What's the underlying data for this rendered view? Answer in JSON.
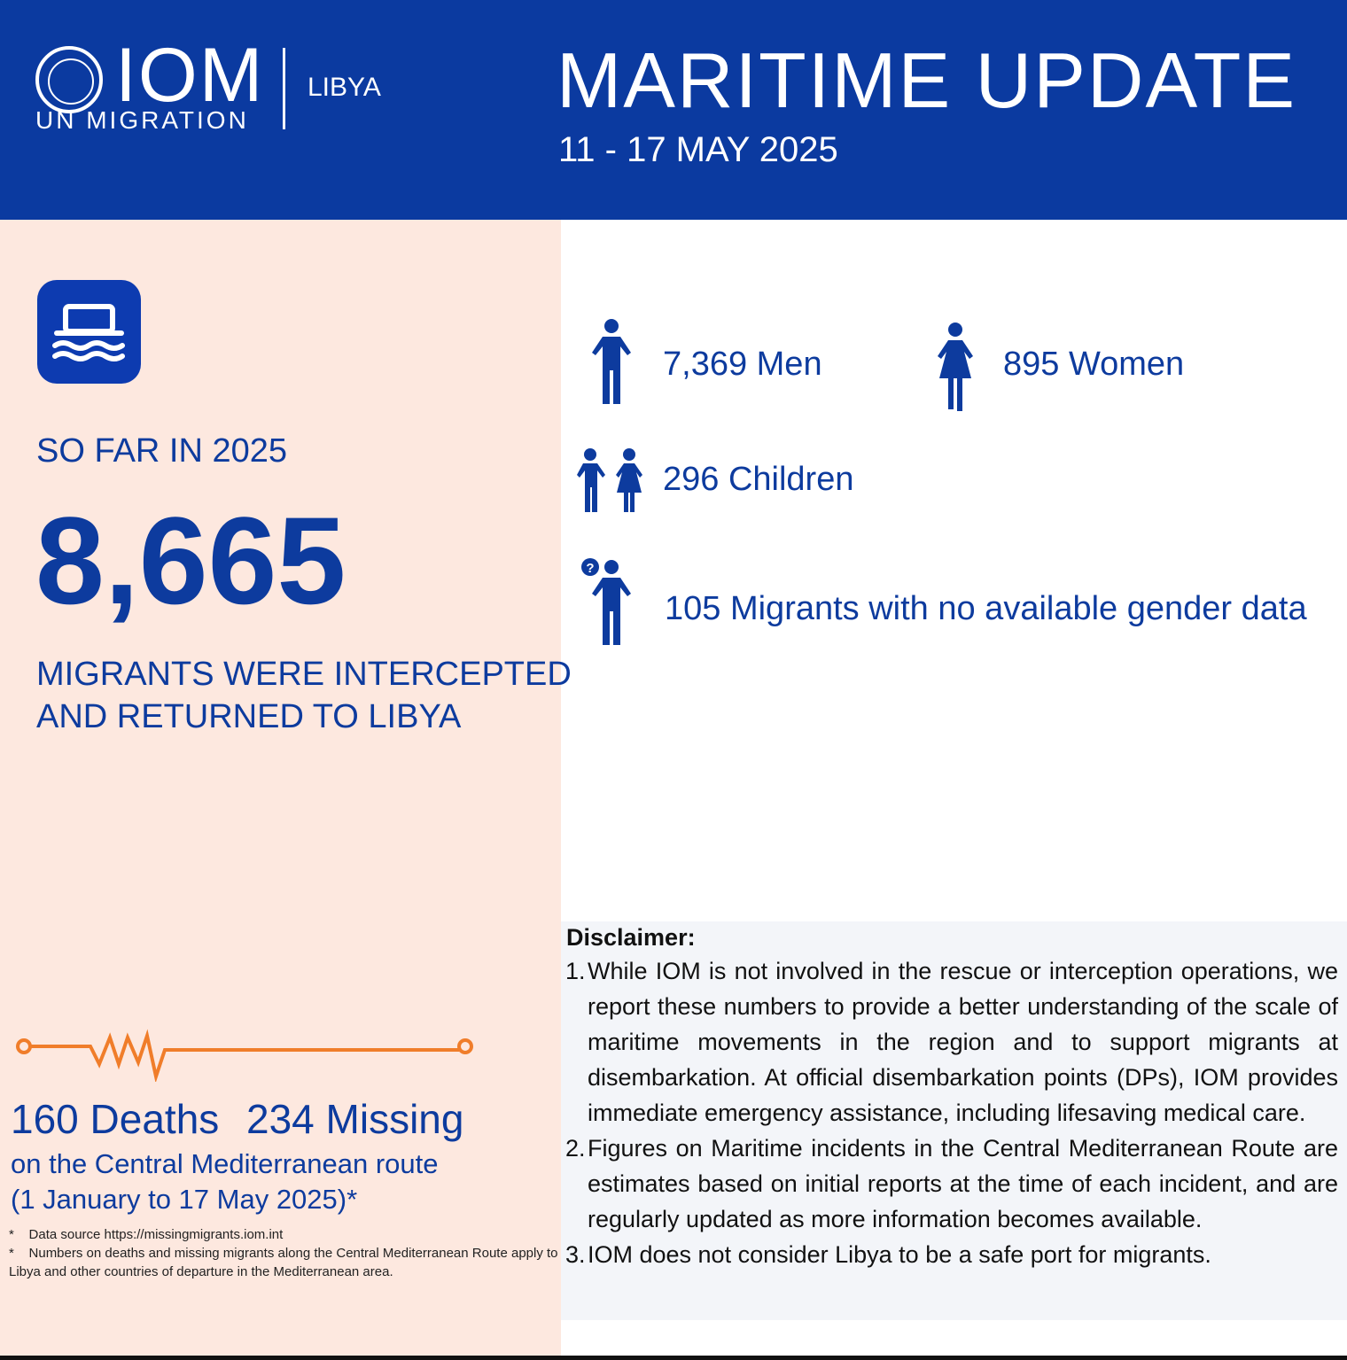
{
  "header": {
    "org": "IOM",
    "org_sub": "UN MIGRATION",
    "country": "LIBYA",
    "title": "MARITIME UPDATE",
    "date_range": "11 - 17 MAY 2025"
  },
  "summary": {
    "period_label": "SO FAR IN 2025",
    "total": "8,665",
    "description_line1": "MIGRANTS WERE INTERCEPTED",
    "description_line2": "AND RETURNED TO LIBYA"
  },
  "breakdown": {
    "men": "7,369 Men",
    "women": "895 Women",
    "children": "296 Children",
    "unknown": "105 Migrants with no available gender data"
  },
  "casualties": {
    "deaths": "160 Deaths",
    "missing": "234 Missing",
    "route": "on the Central Mediterranean route",
    "period": "(1 January to 17 May 2025)*"
  },
  "footnotes": [
    "Data source https://missingmigrants.iom.int",
    "Numbers on deaths and missing migrants along the Central Mediterranean Route apply to Libya and other countries of departure in the Mediterranean area."
  ],
  "disclaimer": {
    "title": "Disclaimer:",
    "items": [
      {
        "num": "1.",
        "text": "While IOM is not involved in the rescue or interception operations, we report these numbers to provide a better understanding of the scale of maritime movements in the region and to support migrants at disembarkation. At official disembarkation points (DPs), IOM provides immediate emergency assistance, including lifesaving medical care."
      },
      {
        "num": "2.",
        "text": "Figures on Maritime incidents in the Central Mediterranean Route are estimates based on initial reports at the time of each incident, and are regularly updated as more information becomes available."
      },
      {
        "num": "3.",
        "text": "IOM does not consider Libya to be a safe port for migrants."
      }
    ]
  },
  "colors": {
    "brand_blue": "#0b3aa0",
    "accent_orange": "#f07d2a",
    "panel_peach": "#fde8df"
  }
}
